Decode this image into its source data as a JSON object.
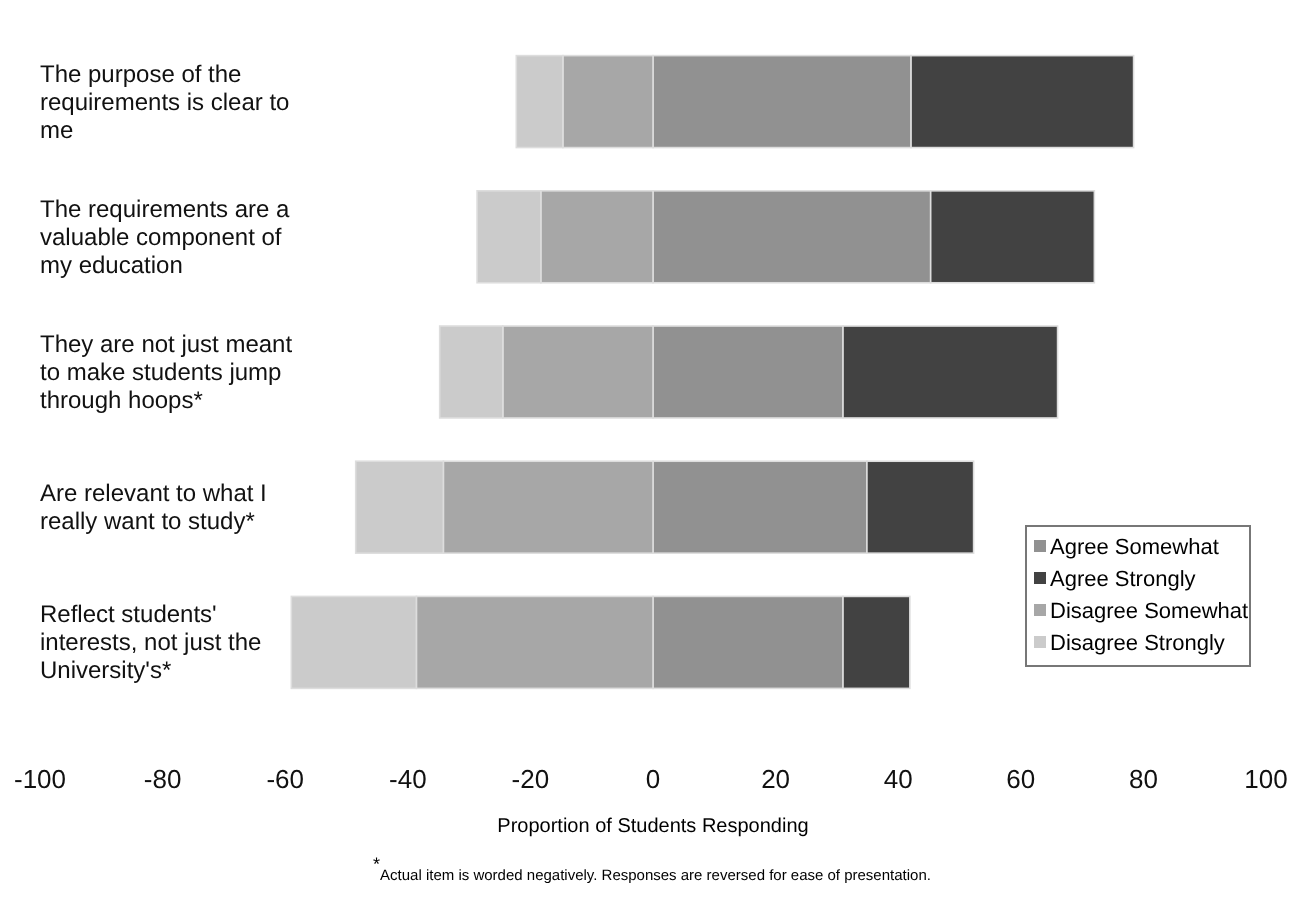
{
  "chart_data": {
    "type": "bar",
    "orientation": "horizontal",
    "stacked": true,
    "categories": [
      "The purpose of the requirements is clear to me",
      "The requirements are a valuable component of my education",
      "They are not  just meant to make students jump through hoops*",
      "Are relevant to what I really want to study*",
      "Reflect  students' interests, not just the University's*"
    ],
    "series": [
      {
        "name": "Agree  Somewhat",
        "color": "#919191",
        "values": [
          42.1,
          45.3,
          31,
          34.9,
          31
        ]
      },
      {
        "name": "Agree  Strongly",
        "color": "#424242",
        "values": [
          36.3,
          26.7,
          35,
          17.4,
          10.9
        ]
      },
      {
        "name": "Disagree  Somewhat",
        "color": "#a7a7a7",
        "values": [
          -14.7,
          -18.3,
          -24.5,
          -34.2,
          -38.6
        ]
      },
      {
        "name": "Disagree  Strongly",
        "color": "#cbcbcb",
        "values": [
          -7.6,
          -10.4,
          -10.3,
          -14.3,
          -20.4
        ]
      }
    ],
    "xlim": [
      -100,
      100
    ],
    "xticks": [
      -100,
      -80,
      -60,
      -40,
      -20,
      0,
      20,
      40,
      60,
      80,
      100
    ],
    "xlabel": "Proportion  of  Students  Responding",
    "legend": "right",
    "annotations": [
      "$^{*}$Actual item is worded negatively.  Responses are reversed for ease of presentation."
    ]
  }
}
